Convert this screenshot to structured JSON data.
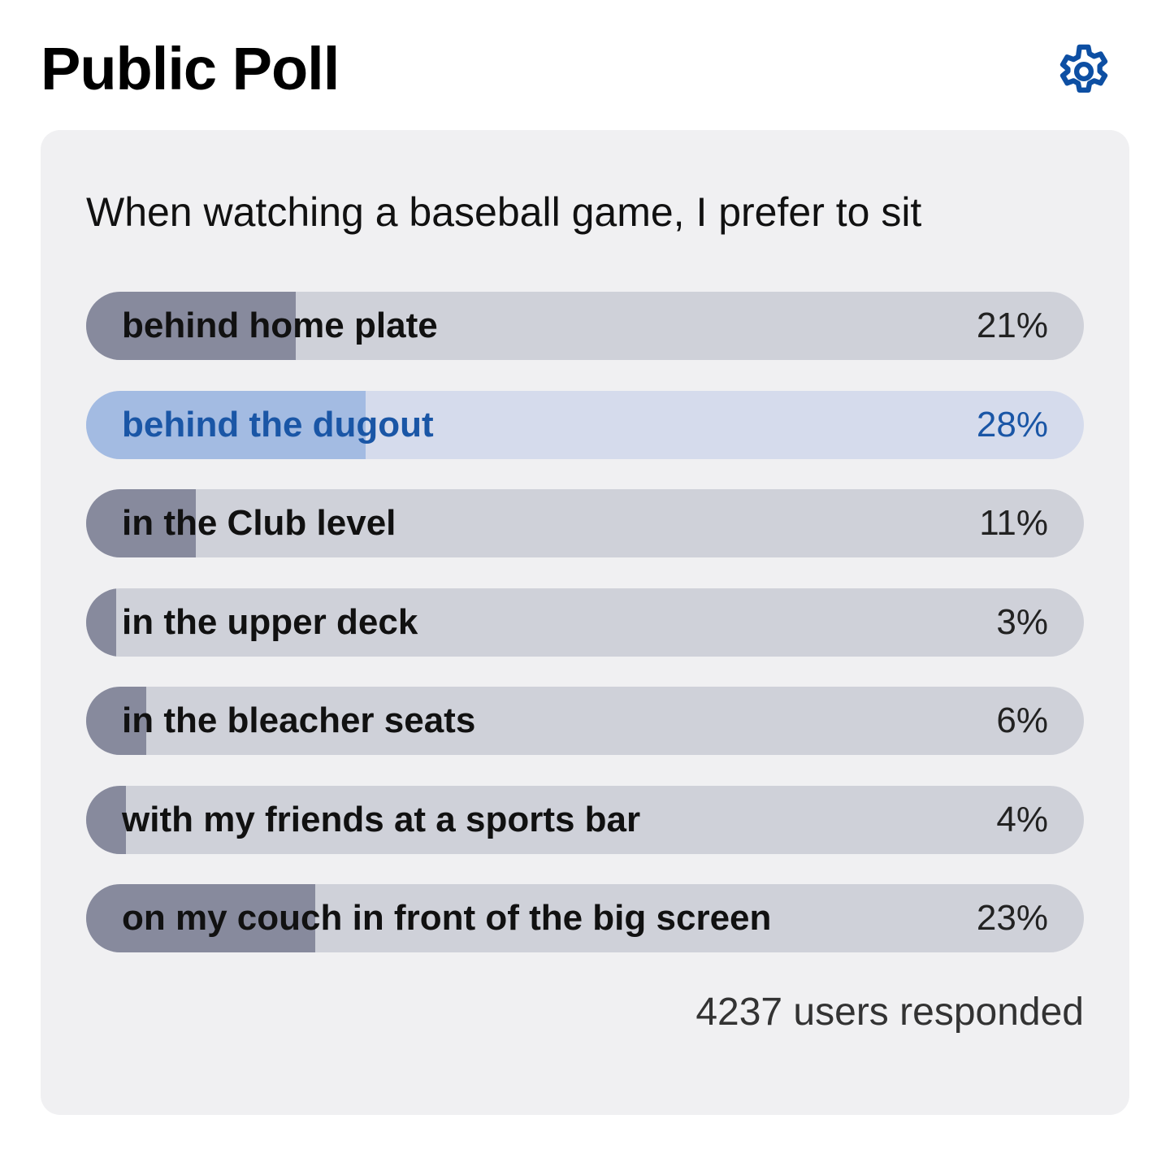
{
  "header": {
    "title": "Public Poll",
    "settings_icon": "gear-icon",
    "accent": "#0d4fa3"
  },
  "poll": {
    "question": "When watching a baseball game, I prefer to sit",
    "options": [
      {
        "label": "behind home plate",
        "percent": 21,
        "percent_text": "21%",
        "selected": false
      },
      {
        "label": "behind the dugout",
        "percent": 28,
        "percent_text": "28%",
        "selected": true
      },
      {
        "label": "in the Club level",
        "percent": 11,
        "percent_text": "11%",
        "selected": false
      },
      {
        "label": "in the upper deck",
        "percent": 3,
        "percent_text": "3%",
        "selected": false
      },
      {
        "label": "in the bleacher seats",
        "percent": 6,
        "percent_text": "6%",
        "selected": false
      },
      {
        "label": "with my friends at a sports bar",
        "percent": 4,
        "percent_text": "4%",
        "selected": false
      },
      {
        "label": "on my couch in front of the big screen",
        "percent": 23,
        "percent_text": "23%",
        "selected": false
      }
    ],
    "footer": "4237 users responded"
  }
}
